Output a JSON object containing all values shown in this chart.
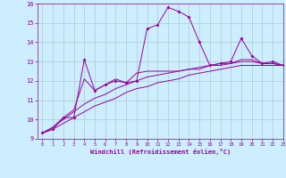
{
  "xlabel": "Windchill (Refroidissement éolien,°C)",
  "background_color": "#cceeff",
  "grid_color": "#aacccc",
  "line_color": "#990099",
  "x_data": [
    0,
    1,
    2,
    3,
    4,
    5,
    6,
    7,
    8,
    9,
    10,
    11,
    12,
    13,
    14,
    15,
    16,
    17,
    18,
    19,
    20,
    21,
    22,
    23
  ],
  "y_main": [
    9.3,
    9.5,
    10.1,
    10.1,
    13.1,
    11.5,
    11.8,
    12.0,
    11.9,
    12.0,
    14.7,
    14.9,
    15.8,
    15.6,
    15.3,
    14.0,
    12.8,
    12.9,
    13.0,
    14.2,
    13.3,
    12.9,
    13.0,
    12.8
  ],
  "y_line1": [
    9.3,
    9.6,
    10.1,
    10.5,
    12.1,
    11.5,
    11.8,
    12.1,
    11.9,
    12.4,
    12.5,
    12.5,
    12.5,
    12.5,
    12.6,
    12.6,
    12.8,
    12.9,
    12.9,
    13.1,
    13.1,
    12.9,
    12.9,
    12.8
  ],
  "y_line2": [
    9.3,
    9.6,
    10.0,
    10.4,
    10.8,
    11.1,
    11.3,
    11.6,
    11.8,
    12.0,
    12.2,
    12.3,
    12.4,
    12.5,
    12.6,
    12.7,
    12.8,
    12.8,
    12.9,
    13.0,
    13.0,
    12.9,
    12.9,
    12.8
  ],
  "y_line3": [
    9.3,
    9.5,
    9.8,
    10.1,
    10.4,
    10.7,
    10.9,
    11.1,
    11.4,
    11.6,
    11.7,
    11.9,
    12.0,
    12.1,
    12.3,
    12.4,
    12.5,
    12.6,
    12.7,
    12.8,
    12.8,
    12.8,
    12.8,
    12.8
  ],
  "ylim": [
    9,
    16
  ],
  "xlim": [
    -0.5,
    23
  ],
  "yticks": [
    9,
    10,
    11,
    12,
    13,
    14,
    15,
    16
  ],
  "xticks": [
    0,
    1,
    2,
    3,
    4,
    5,
    6,
    7,
    8,
    9,
    10,
    11,
    12,
    13,
    14,
    15,
    16,
    17,
    18,
    19,
    20,
    21,
    22,
    23
  ]
}
